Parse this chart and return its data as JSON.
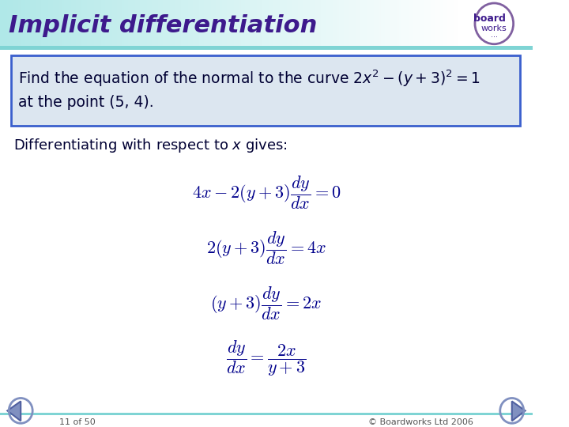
{
  "title": "Implicit differentiation",
  "title_color": "#3d1a8c",
  "header_bg_color_left": "#b0e8e8",
  "header_bg_color_right": "#ffffff",
  "body_bg": "#ffffff",
  "box_text_line1": "Find the equation of the normal to the curve 2$x^2$ – ($y$ + 3)$^2$ = 1",
  "box_text_line2": "at the point (5, 4).",
  "box_border_color": "#3a5fcd",
  "box_bg_color": "#dce6f0",
  "diff_text": "Differentiating with respect to $x$ gives:",
  "diff_text_color": "#000033",
  "eq1": "$4x - 2(y+3)\\dfrac{dy}{dx} = 0$",
  "eq2": "$2(y+3)\\dfrac{dy}{dx} = 4x$",
  "eq3": "$(y+3)\\dfrac{dy}{dx} = 2x$",
  "eq4": "$\\dfrac{dy}{dx} = \\dfrac{2x}{y+3}$",
  "eq_color": "#00008B",
  "footer_text_left": "11 of 50",
  "footer_text_right": "© Boardworks Ltd 2006",
  "footer_color": "#555555"
}
